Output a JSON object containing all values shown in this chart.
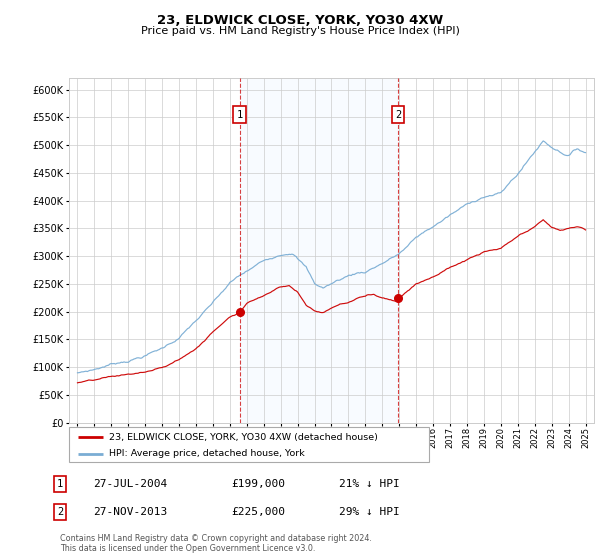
{
  "title": "23, ELDWICK CLOSE, YORK, YO30 4XW",
  "subtitle": "Price paid vs. HM Land Registry's House Price Index (HPI)",
  "hpi_color": "#7aadd4",
  "price_color": "#cc0000",
  "shade_color": "#ddeeff",
  "background_color": "#ffffff",
  "grid_color": "#cccccc",
  "sale1_date": 2004.58,
  "sale1_price": 199000,
  "sale1_label": "1",
  "sale2_date": 2013.92,
  "sale2_price": 225000,
  "sale2_label": "2",
  "ylim": [
    0,
    620000
  ],
  "xlim": [
    1994.5,
    2025.5
  ],
  "legend_line1": "23, ELDWICK CLOSE, YORK, YO30 4XW (detached house)",
  "legend_line2": "HPI: Average price, detached house, York",
  "table_row1_num": "1",
  "table_row1_date": "27-JUL-2004",
  "table_row1_price": "£199,000",
  "table_row1_hpi": "21% ↓ HPI",
  "table_row2_num": "2",
  "table_row2_date": "27-NOV-2013",
  "table_row2_price": "£225,000",
  "table_row2_hpi": "29% ↓ HPI",
  "footnote": "Contains HM Land Registry data © Crown copyright and database right 2024.\nThis data is licensed under the Open Government Licence v3.0."
}
